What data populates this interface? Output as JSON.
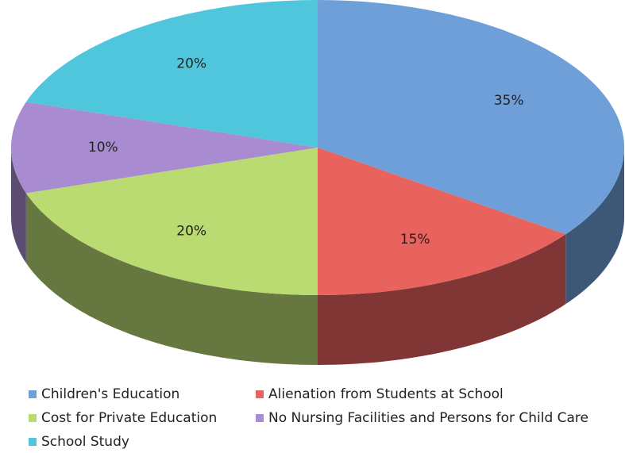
{
  "chart_data": {
    "type": "pie",
    "categories": [
      "Children's Education",
      "Alienation from Students at School",
      "Cost for Private Education",
      "No Nursing Facilities and Persons for Child Care",
      "School Study"
    ],
    "values": [
      35,
      15,
      20,
      10,
      20
    ],
    "value_labels": [
      "35%",
      "15%",
      "20%",
      "10%",
      "20%"
    ],
    "colors": [
      "#6f9fd8",
      "#e8625e",
      "#bada72",
      "#a88bd0",
      "#4fc6dc"
    ]
  }
}
